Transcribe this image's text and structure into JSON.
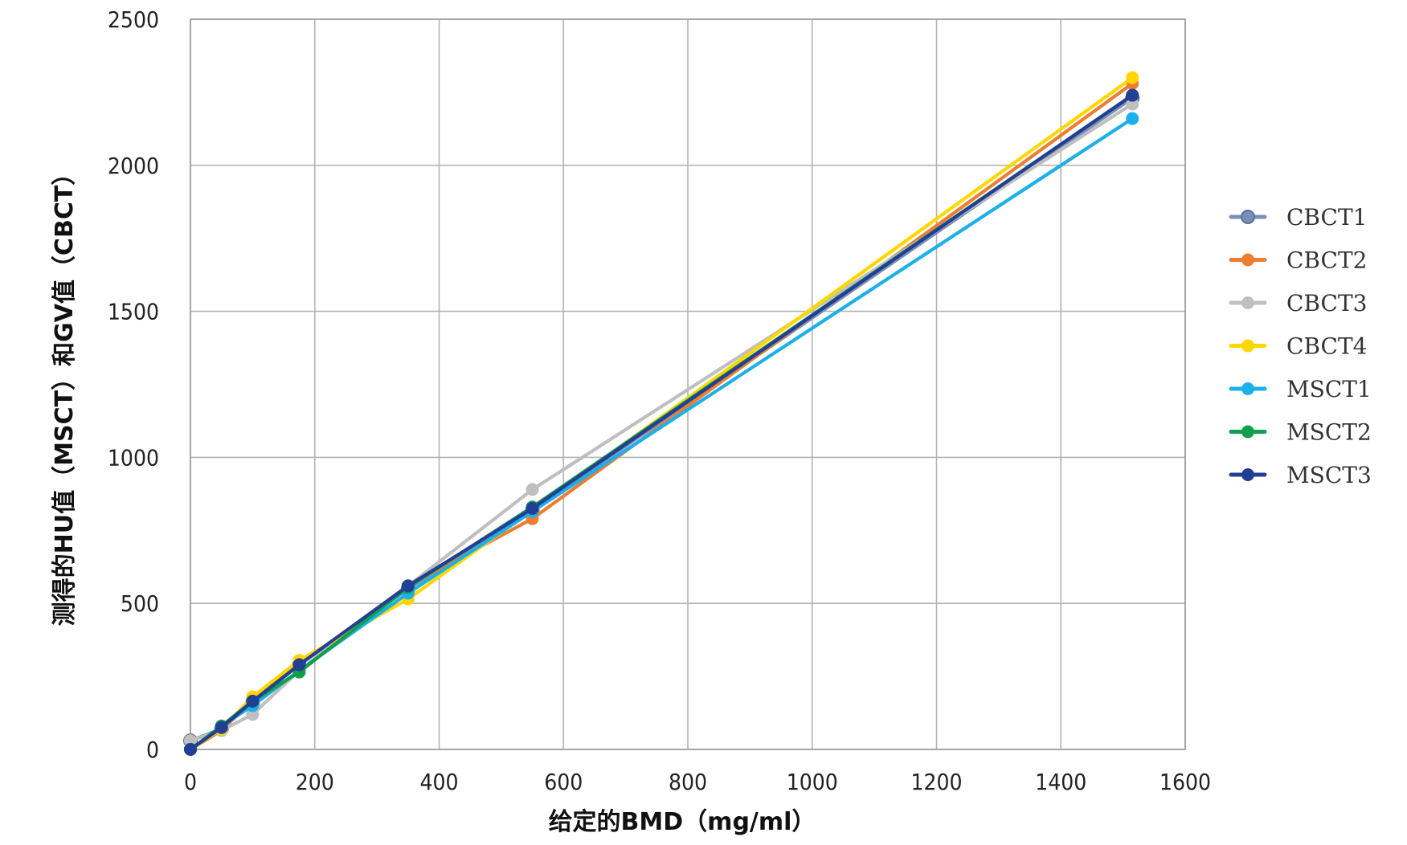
{
  "chart_data": {
    "type": "line",
    "title": "",
    "xlabel": "给定的BMD（mg/ml）",
    "ylabel": "测得的HU值（MSCT）和GV值（CBCT）",
    "xlim": [
      0,
      1600
    ],
    "ylim": [
      0,
      2500
    ],
    "x_ticks": [
      0,
      200,
      400,
      600,
      800,
      1000,
      1200,
      1400,
      1600
    ],
    "y_ticks": [
      0,
      500,
      1000,
      1500,
      2000,
      2500
    ],
    "grid": true,
    "legend_position": "right",
    "x": [
      0,
      50,
      100,
      175,
      350,
      550,
      1515
    ],
    "series": [
      {
        "name": "CBCT1",
        "color": "#7a8fb8",
        "values": [
          30,
          70,
          160,
          290,
          550,
          820,
          2230
        ]
      },
      {
        "name": "CBCT2",
        "color": "#ed7d31",
        "values": [
          0,
          65,
          170,
          290,
          560,
          790,
          2280
        ]
      },
      {
        "name": "CBCT3",
        "color": "#bfbfbf",
        "values": [
          30,
          65,
          120,
          270,
          560,
          890,
          2210
        ]
      },
      {
        "name": "CBCT4",
        "color": "#ffd700",
        "values": [
          0,
          70,
          180,
          305,
          515,
          820,
          2300
        ]
      },
      {
        "name": "MSCT1",
        "color": "#1ab0ea",
        "values": [
          0,
          80,
          150,
          270,
          535,
          815,
          2160
        ]
      },
      {
        "name": "MSCT2",
        "color": "#109f4b",
        "values": [
          0,
          80,
          165,
          265,
          555,
          830,
          2240
        ]
      },
      {
        "name": "MSCT3",
        "color": "#233f94",
        "values": [
          0,
          75,
          165,
          290,
          560,
          825,
          2240
        ]
      }
    ]
  }
}
